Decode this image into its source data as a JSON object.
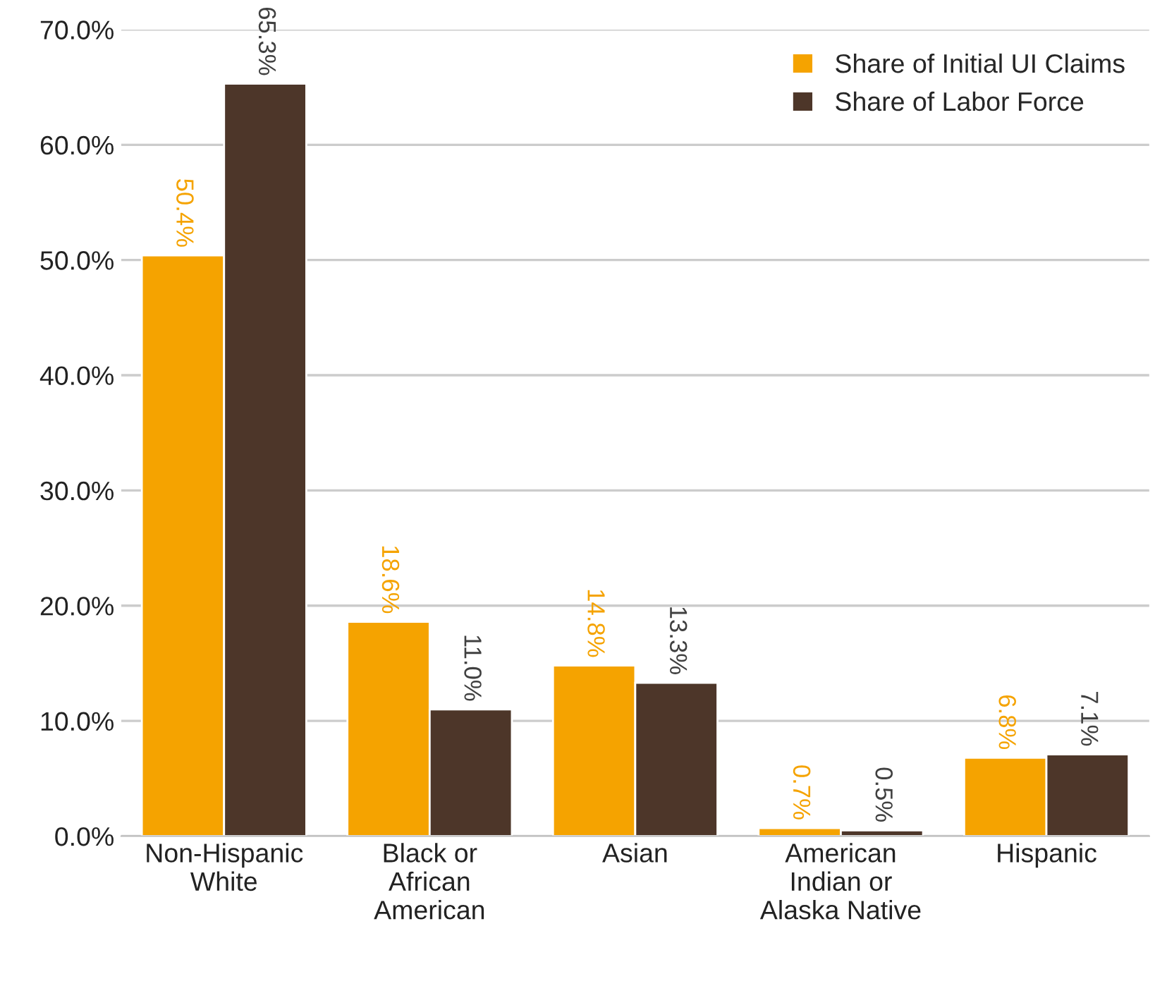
{
  "chart_data": {
    "type": "bar",
    "categories": [
      "Non-Hispanic\nWhite",
      "Black or\nAfrican\nAmerican",
      "Asian",
      "American\nIndian or\nAlaska Native",
      "Hispanic"
    ],
    "series": [
      {
        "name": "Share of Initial UI Claims",
        "color": "#f5a300",
        "values": [
          50.4,
          18.6,
          14.8,
          0.7,
          6.8
        ],
        "value_labels": [
          "50.4%",
          "18.6%",
          "14.8%",
          "0.7%",
          "6.8%"
        ]
      },
      {
        "name": "Share of Labor Force",
        "color": "#4d3629",
        "values": [
          65.3,
          11.0,
          13.3,
          0.5,
          7.1
        ],
        "value_labels": [
          "65.3%",
          "11.0%",
          "13.3%",
          "0.5%",
          "7.1%"
        ]
      }
    ],
    "ylim": [
      0,
      70
    ],
    "yticks": [
      {
        "value": 0,
        "label": "0.0%"
      },
      {
        "value": 10,
        "label": "10.0%"
      },
      {
        "value": 20,
        "label": "20.0%"
      },
      {
        "value": 30,
        "label": "30.0%"
      },
      {
        "value": 40,
        "label": "40.0%"
      },
      {
        "value": 50,
        "label": "50.0%"
      },
      {
        "value": 60,
        "label": "60.0%"
      },
      {
        "value": 70,
        "label": "70.0%"
      }
    ],
    "grid": "y",
    "legend": "top right"
  }
}
